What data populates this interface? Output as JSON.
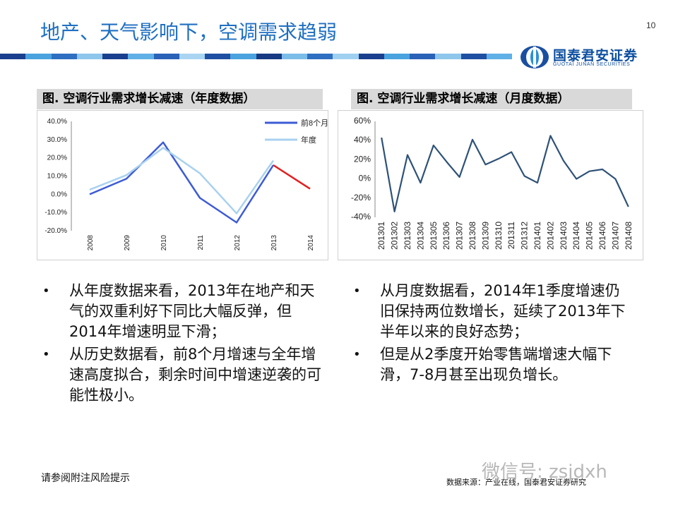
{
  "header": {
    "title": "地产、天气影响下，空调需求趋弱",
    "page_number": "10"
  },
  "logo": {
    "cn": "国泰君安证券",
    "en": "GUOTAI JUNAN SECURITIES"
  },
  "charts": {
    "left_title": "图. 空调行业需求增长减速（年度数据）",
    "right_title": "图. 空调行业需求增长减速（月度数据）"
  },
  "chart_data": [
    {
      "type": "line",
      "title": "图. 空调行业需求增长减速（年度数据）",
      "x": [
        "2008",
        "2009",
        "2010",
        "2011",
        "2012",
        "2013",
        "2014"
      ],
      "series": [
        {
          "name": "前8个月",
          "color": "#3d5bd6",
          "values": [
            0.0,
            8.5,
            28.5,
            -2.0,
            -15.5,
            16.0,
            null
          ]
        },
        {
          "name": "年度",
          "color": "#a9d1ef",
          "values": [
            2.5,
            10.5,
            25.5,
            11.5,
            -10.5,
            18.5,
            null
          ]
        },
        {
          "name": "",
          "color": "#e31e1e",
          "values": [
            null,
            null,
            null,
            null,
            null,
            16.0,
            3.0
          ]
        }
      ],
      "yticks": [
        "40.0%",
        "30.0%",
        "20.0%",
        "10.0%",
        "0.0%",
        "-10.0%",
        "-20.0%"
      ],
      "ylim": [
        -20,
        40
      ],
      "legend": "top-right",
      "grid": false
    },
    {
      "type": "line",
      "title": "图. 空调行业需求增长减速（月度数据）",
      "x": [
        "201301",
        "201302",
        "201303",
        "201304",
        "201305",
        "201306",
        "201307",
        "201308",
        "201309",
        "201310",
        "201311",
        "201312",
        "201401",
        "201402",
        "201403",
        "201404",
        "201405",
        "201406",
        "201407",
        "201408"
      ],
      "series": [
        {
          "name": "",
          "color": "#2e5277",
          "values": [
            43,
            -34,
            25,
            -4,
            35,
            18,
            2,
            41,
            15,
            21,
            28,
            3,
            -4,
            45,
            19,
            0,
            8,
            10,
            0,
            -29
          ]
        }
      ],
      "yticks": [
        "60%",
        "40%",
        "20%",
        "0%",
        "-20%",
        "-40%"
      ],
      "ylim": [
        -40,
        60
      ],
      "grid": false
    }
  ],
  "bullets": {
    "left": [
      "从年度数据来看，2013年在地产和天气的双重利好下同比大幅反弹，但2014年增速明显下滑；",
      "从历史数据看，前8个月增速与全年增速高度拟合，剩余时间中增速逆袭的可能性极小。"
    ],
    "right": [
      "从月度数据看，2014年1季度增速仍旧保持两位数增长，延续了2013年下半年以来的良好态势；",
      "但是从2季度开始零售端增速大幅下滑，7-8月甚至出现负增长。"
    ]
  },
  "footer": {
    "disclaimer": "请参阅附注风险提示",
    "source": "数据来源：产业在线，国泰君安证券研究",
    "watermark": "微信号: zsjdxh"
  },
  "colors": {
    "title": "#1f6fc1",
    "brand": "#0d4fa0",
    "chart_header_bg": "#d9d9d9"
  }
}
